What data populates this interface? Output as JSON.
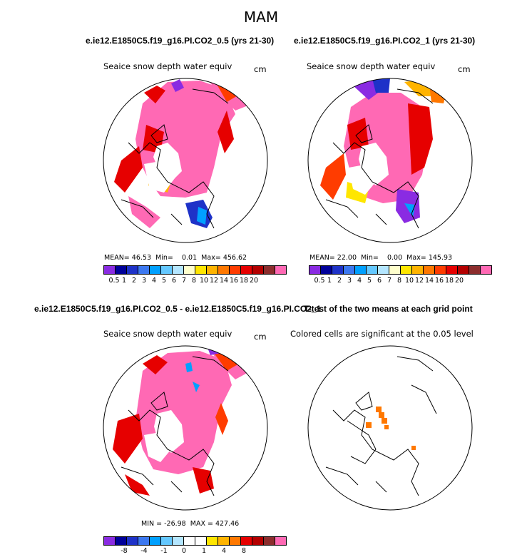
{
  "title": "MAM",
  "panels": [
    {
      "id": "p1",
      "case_title": "e.ie12.E1850C5.f19_g16.PI.CO2_0.5 (yrs 21-30)",
      "var_title": "Seaice snow depth water equiv",
      "units": "cm",
      "stats": {
        "mean_label": "MEAN=",
        "mean": "46.53",
        "min_label": "Min=",
        "min": "0.01",
        "max_label": "Max=",
        "max": "456.62"
      },
      "colorbar": "abs"
    },
    {
      "id": "p2",
      "case_title": "e.ie12.E1850C5.f19_g16.PI.CO2_1 (yrs 21-30)",
      "var_title": "Seaice snow depth water equiv",
      "units": "cm",
      "stats": {
        "mean_label": "MEAN=",
        "mean": "22.00",
        "min_label": "Min=",
        "min": "0.00",
        "max_label": "Max=",
        "max": "145.93"
      },
      "colorbar": "abs"
    },
    {
      "id": "p3",
      "case_title": "e.ie12.E1850C5.f19_g16.PI.CO2_0.5 - e.ie12.E1850C5.f19_g16.PI.CO2_1",
      "var_title": "Seaice snow depth water equiv",
      "units": "cm",
      "stats_text": "MIN = -26.98  MAX = 427.46",
      "colorbar": "diff"
    },
    {
      "id": "p4",
      "case_title": "T-test of the two means at each grid point",
      "var_title": "Colored cells are significant at the 0.05 level"
    }
  ],
  "colorbar_abs": {
    "labels": [
      "0.5",
      "1",
      "2",
      "3",
      "4",
      "5",
      "6",
      "7",
      "8",
      "10",
      "12",
      "14",
      "16",
      "18",
      "20"
    ],
    "colors": [
      "#8a2be2",
      "#000099",
      "#1e32c8",
      "#3c78f0",
      "#00a0ff",
      "#64c8ff",
      "#b4e6ff",
      "#ffffcc",
      "#ffe600",
      "#ffb400",
      "#ff7800",
      "#ff3c00",
      "#e60000",
      "#b40000",
      "#8c2d2d",
      "#ff69b4"
    ]
  },
  "colorbar_diff": {
    "labels": [
      "-8",
      "-4",
      "-1",
      "0",
      "1",
      "4",
      "8"
    ],
    "colors": [
      "#8a2be2",
      "#000099",
      "#1e32c8",
      "#3c78f0",
      "#00a0ff",
      "#64c8ff",
      "#b4e6ff",
      "#ffffff",
      "#ffffff",
      "#ffe600",
      "#ffb400",
      "#ff7800",
      "#e60000",
      "#b40000",
      "#8c2d2d",
      "#ff69b4"
    ]
  },
  "colors": {
    "max_class": "#ff69b4",
    "signif": "#ff7800"
  }
}
